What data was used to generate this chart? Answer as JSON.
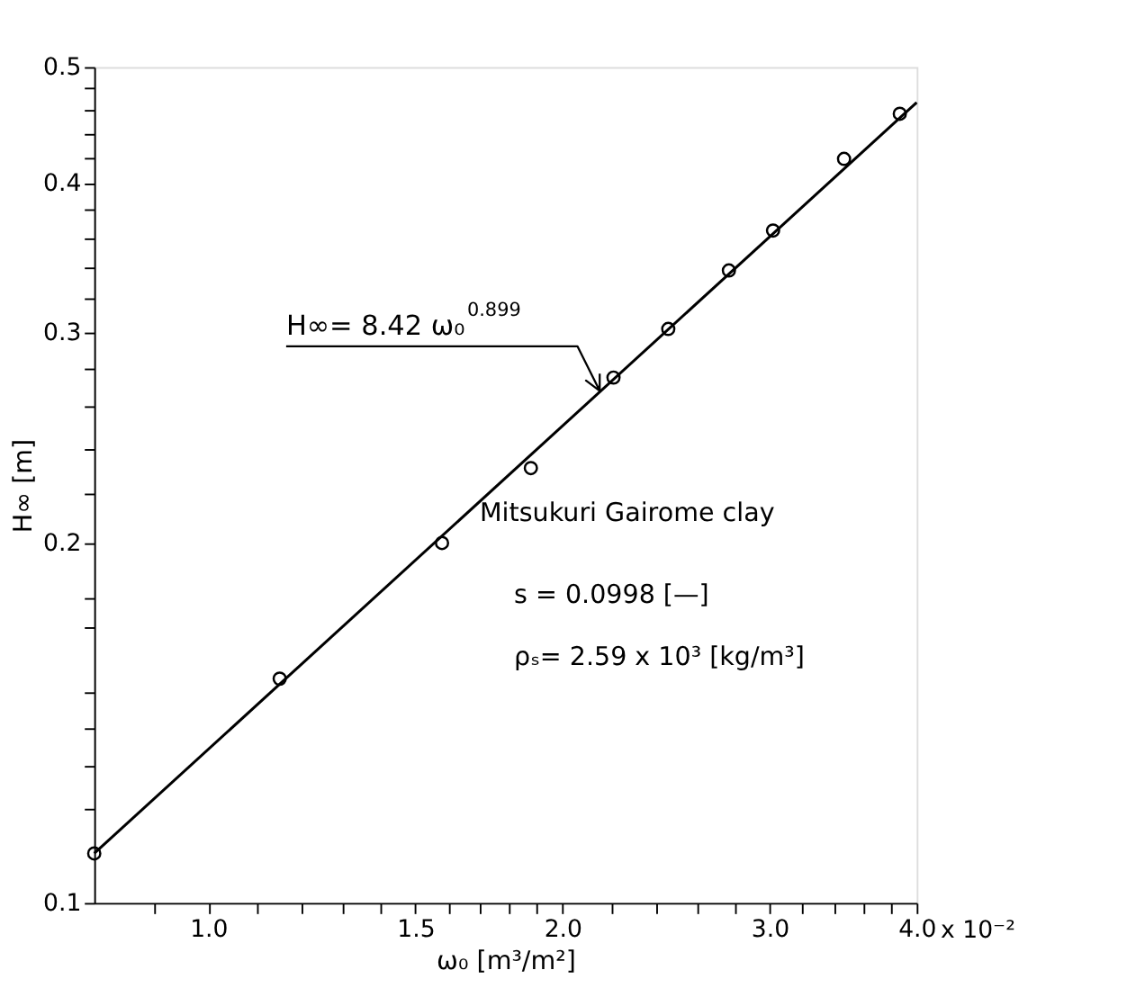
{
  "chart_data": {
    "type": "scatter",
    "xlabel": "ω₀ [m³/m²]",
    "ylabel": "H∞ [m]",
    "log": "xy",
    "grid": false,
    "marker": "circle",
    "xlim": [
      0.8,
      4.0
    ],
    "xticks": [
      {
        "value": 0.9,
        "label": null
      },
      {
        "value": 1.0,
        "label": "1.0"
      },
      {
        "value": 1.1,
        "label": null
      },
      {
        "value": 1.2,
        "label": null
      },
      {
        "value": 1.3,
        "label": null
      },
      {
        "value": 1.4,
        "label": null
      },
      1.5,
      {
        "value": 1.6,
        "label": null
      },
      {
        "value": 1.7,
        "label": null
      },
      {
        "value": 1.8,
        "label": null
      },
      {
        "value": 1.9,
        "label": null
      },
      {
        "value": 2.0,
        "label": "2.0"
      },
      {
        "value": 2.2,
        "label": null
      },
      {
        "value": 2.4,
        "label": null
      },
      {
        "value": 2.6,
        "label": null
      },
      {
        "value": 2.8,
        "label": null
      },
      {
        "value": 3.0,
        "label": "3.0"
      },
      {
        "value": 3.2,
        "label": null
      },
      {
        "value": 3.4,
        "label": null
      },
      {
        "value": 3.6,
        "label": null
      },
      {
        "value": 3.8,
        "label": null
      },
      {
        "value": 4.0,
        "label": "4.0"
      }
    ],
    "ylim": [
      0.1,
      0.5
    ],
    "yticks": [
      0.1,
      {
        "value": 0.12,
        "label": null
      },
      {
        "value": 0.13,
        "label": null
      },
      {
        "value": 0.14,
        "label": null
      },
      {
        "value": 0.15,
        "label": null
      },
      {
        "value": 0.17,
        "label": null
      },
      {
        "value": 0.18,
        "label": null
      },
      0.2,
      {
        "value": 0.22,
        "label": null
      },
      {
        "value": 0.24,
        "label": null
      },
      {
        "value": 0.26,
        "label": null
      },
      {
        "value": 0.28,
        "label": null
      },
      0.3,
      {
        "value": 0.32,
        "label": null
      },
      {
        "value": 0.34,
        "label": null
      },
      {
        "value": 0.36,
        "label": null
      },
      {
        "value": 0.38,
        "label": null
      },
      0.4,
      {
        "value": 0.42,
        "label": null
      },
      {
        "value": 0.44,
        "label": null
      },
      {
        "value": 0.46,
        "label": null
      },
      {
        "value": 0.48,
        "label": null
      },
      0.5
    ],
    "series": [
      {
        "color": "#000000",
        "x": [
          0.8,
          1.15,
          1.58,
          1.88,
          2.21,
          2.46,
          2.77,
          3.02,
          3.47,
          3.87
        ],
        "values": [
          0.11,
          0.154,
          0.2,
          0.231,
          0.275,
          0.302,
          0.338,
          0.365,
          0.419,
          0.457
        ]
      },
      {
        "type": "line",
        "color": "#000000",
        "marker": "none",
        "x": [
          0.8,
          4.0
        ],
        "values": [
          0.11,
          0.467
        ]
      }
    ],
    "annotations": [
      "H∞= 8.42 ω₀$^{0.899}$",
      "Mitsukuri Gairome clay",
      "s = 0.0998 [—]",
      "ρₛ= 2.59 x 10³ [kg/m³]",
      "x 10⁻²"
    ]
  }
}
